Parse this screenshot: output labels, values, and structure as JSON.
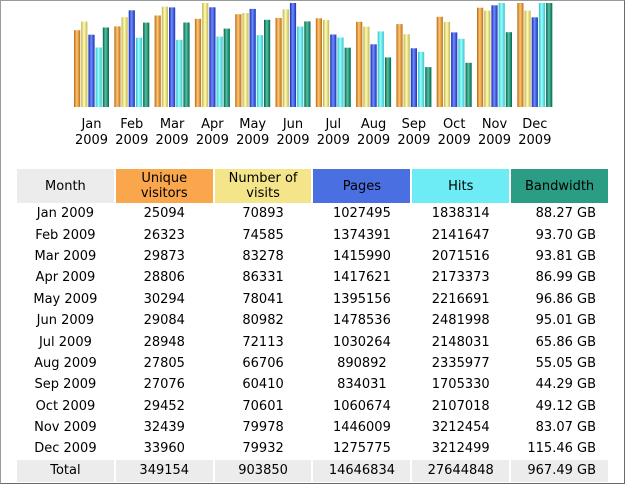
{
  "chart_data": {
    "type": "bar",
    "categories": [
      [
        "Jan",
        "2009"
      ],
      [
        "Feb",
        "2009"
      ],
      [
        "Mar",
        "2009"
      ],
      [
        "Apr",
        "2009"
      ],
      [
        "May",
        "2009"
      ],
      [
        "Jun",
        "2009"
      ],
      [
        "Jul",
        "2009"
      ],
      [
        "Aug",
        "2009"
      ],
      [
        "Sep",
        "2009"
      ],
      [
        "Oct",
        "2009"
      ],
      [
        "Nov",
        "2009"
      ],
      [
        "Dec",
        "2009"
      ]
    ],
    "series": [
      {
        "name": "Unique visitors",
        "color": "#e0903a",
        "values": [
          25094,
          26323,
          29873,
          28806,
          30294,
          29084,
          28948,
          27805,
          27076,
          29452,
          32439,
          33960
        ]
      },
      {
        "name": "Number of visits",
        "color": "#e6d77a",
        "values": [
          70893,
          74585,
          83278,
          86331,
          78041,
          80982,
          72113,
          66706,
          60410,
          70601,
          79978,
          79932
        ]
      },
      {
        "name": "Pages",
        "color": "#3a55d6",
        "values": [
          1027495,
          1374391,
          1415990,
          1417621,
          1395156,
          1478536,
          1030264,
          890892,
          834031,
          1060674,
          1446009,
          1275775
        ]
      },
      {
        "name": "Hits",
        "color": "#5ee6ef",
        "values": [
          1838314,
          2141647,
          2071516,
          2173373,
          2216691,
          2481998,
          2148031,
          2335977,
          1705330,
          2107018,
          3212454,
          3212499
        ]
      },
      {
        "name": "Bandwidth",
        "color": "#1f8a6e",
        "values": [
          88.27,
          93.7,
          93.81,
          86.99,
          96.86,
          95.01,
          65.86,
          55.05,
          44.29,
          49.12,
          83.07,
          115.46
        ]
      }
    ]
  },
  "table": {
    "headers": {
      "month": "Month",
      "unique_visitors": "Unique visitors",
      "visits": "Number of visits",
      "pages": "Pages",
      "hits": "Hits",
      "bandwidth": "Bandwidth"
    },
    "header_colors": {
      "month": "#ececec",
      "unique_visitors": "#f9a64c",
      "visits": "#f4e48a",
      "pages": "#4a6fe0",
      "hits": "#6eecf6",
      "bandwidth": "#2a9d84"
    },
    "rows": [
      {
        "month": "Jan 2009",
        "unique": "25094",
        "visits": "70893",
        "pages": "1027495",
        "hits": "1838314",
        "bandwidth": "88.27 GB"
      },
      {
        "month": "Feb 2009",
        "unique": "26323",
        "visits": "74585",
        "pages": "1374391",
        "hits": "2141647",
        "bandwidth": "93.70 GB"
      },
      {
        "month": "Mar 2009",
        "unique": "29873",
        "visits": "83278",
        "pages": "1415990",
        "hits": "2071516",
        "bandwidth": "93.81 GB"
      },
      {
        "month": "Apr 2009",
        "unique": "28806",
        "visits": "86331",
        "pages": "1417621",
        "hits": "2173373",
        "bandwidth": "86.99 GB"
      },
      {
        "month": "May 2009",
        "unique": "30294",
        "visits": "78041",
        "pages": "1395156",
        "hits": "2216691",
        "bandwidth": "96.86 GB"
      },
      {
        "month": "Jun 2009",
        "unique": "29084",
        "visits": "80982",
        "pages": "1478536",
        "hits": "2481998",
        "bandwidth": "95.01 GB"
      },
      {
        "month": "Jul 2009",
        "unique": "28948",
        "visits": "72113",
        "pages": "1030264",
        "hits": "2148031",
        "bandwidth": "65.86 GB"
      },
      {
        "month": "Aug 2009",
        "unique": "27805",
        "visits": "66706",
        "pages": "890892",
        "hits": "2335977",
        "bandwidth": "55.05 GB"
      },
      {
        "month": "Sep 2009",
        "unique": "27076",
        "visits": "60410",
        "pages": "834031",
        "hits": "1705330",
        "bandwidth": "44.29 GB"
      },
      {
        "month": "Oct 2009",
        "unique": "29452",
        "visits": "70601",
        "pages": "1060674",
        "hits": "2107018",
        "bandwidth": "49.12 GB"
      },
      {
        "month": "Nov 2009",
        "unique": "32439",
        "visits": "79978",
        "pages": "1446009",
        "hits": "3212454",
        "bandwidth": "83.07 GB"
      },
      {
        "month": "Dec 2009",
        "unique": "33960",
        "visits": "79932",
        "pages": "1275775",
        "hits": "3212499",
        "bandwidth": "115.46 GB"
      }
    ],
    "total": {
      "label": "Total",
      "unique": "349154",
      "visits": "903850",
      "pages": "14646834",
      "hits": "27644848",
      "bandwidth": "967.49 GB"
    }
  }
}
